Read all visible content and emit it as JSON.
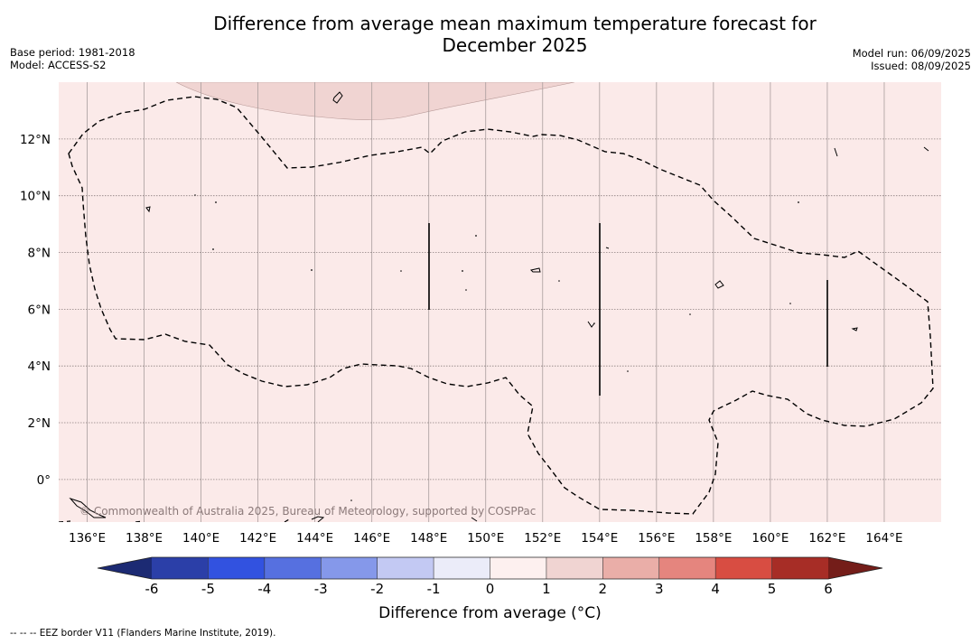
{
  "title_line1": "Difference from average mean maximum temperature forecast for",
  "title_line2": "December 2025",
  "base_period": "Base period: 1981-2018",
  "model": "Model: ACCESS-S2",
  "model_run": "Model run: 06/09/2025",
  "issued": "Issued: 08/09/2025",
  "copyright": "© Commonwealth of Australia 2025, Bureau of Meteorology, supported by COSPPac",
  "footnote": "--  --  -- EEZ border V11 (Flanders Marine Institute, 2019).",
  "map": {
    "lon_range": [
      135,
      166
    ],
    "lat_range": [
      -1.5,
      14
    ],
    "lon_ticks": [
      "136°E",
      "138°E",
      "140°E",
      "142°E",
      "144°E",
      "146°E",
      "148°E",
      "150°E",
      "152°E",
      "154°E",
      "156°E",
      "158°E",
      "160°E",
      "162°E",
      "164°E"
    ],
    "lat_ticks": [
      "0°",
      "2°N",
      "4°N",
      "6°N",
      "8°N",
      "10°N",
      "12°N"
    ],
    "background_category": "0 to 1",
    "background_color": "#fbeae9",
    "warmer_region_category": "1 to 2",
    "warmer_region_color": "#f0d4d2",
    "grid": true
  },
  "colorbar": {
    "title": "Difference from average ($^\\circ$C)",
    "title_display": "Difference from average (°C)",
    "labels": [
      "-6",
      "-5",
      "-4",
      "-3",
      "-2",
      "-1",
      "0",
      "1",
      "2",
      "3",
      "4",
      "5",
      "6"
    ],
    "colors": [
      "#2b3fa8",
      "#3252e0",
      "#5670e0",
      "#8598ea",
      "#c3c9f3",
      "#ebecf9",
      "#fdf0ef",
      "#f0d4d2",
      "#eaaea8",
      "#e5857e",
      "#d84d42",
      "#a72d26"
    ],
    "min_extend_color": "#1c2a73",
    "max_extend_color": "#741d19"
  }
}
